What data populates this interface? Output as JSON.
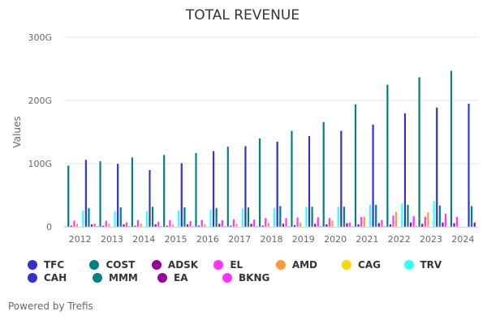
{
  "chart_data": {
    "type": "bar",
    "title": "TOTAL REVENUE",
    "xlabel": "",
    "ylabel": "Values",
    "ylim": [
      0,
      300
    ],
    "y_unit": "G",
    "yticks": [
      "0",
      "100G",
      "200G",
      "300G"
    ],
    "ytick_values": [
      0,
      100,
      200,
      300
    ],
    "grid": true,
    "legend_position": "bottom-left",
    "categories": [
      "2012",
      "2013",
      "2014",
      "2015",
      "2016",
      "2017",
      "2018",
      "2019",
      "2020",
      "2021",
      "2022",
      "2023",
      "2024"
    ],
    "series": [
      {
        "name": "TFC",
        "color": "#3333cc",
        "values": [
          1,
          1,
          1,
          1,
          1,
          1,
          1,
          1,
          1,
          1,
          1,
          1,
          null
        ]
      },
      {
        "name": "COST",
        "color": "#008080",
        "values": [
          97,
          104,
          110,
          114,
          117,
          127,
          140,
          152,
          166,
          194,
          225,
          237,
          247
        ]
      },
      {
        "name": "ADSK",
        "color": "#990099",
        "values": [
          2,
          2,
          2,
          2,
          2,
          2,
          2,
          3,
          4,
          4,
          4,
          5,
          6
        ]
      },
      {
        "name": "EL",
        "color": "#ff33ff",
        "values": [
          10,
          10,
          11,
          11,
          11,
          12,
          14,
          15,
          14,
          16,
          18,
          16,
          16
        ]
      },
      {
        "name": "AMD",
        "color": "#ff9933",
        "values": [
          5,
          5,
          5,
          4,
          4,
          5,
          6,
          7,
          10,
          16,
          24,
          23,
          null
        ]
      },
      {
        "name": "CAG",
        "color": "#ffd700",
        "values": [
          null,
          null,
          null,
          null,
          null,
          null,
          null,
          null,
          null,
          null,
          null,
          null,
          null
        ]
      },
      {
        "name": "TRV",
        "color": "#33ffff",
        "values": [
          26,
          25,
          25,
          26,
          27,
          29,
          30,
          32,
          32,
          35,
          37,
          41,
          null
        ]
      },
      {
        "name": "CAH",
        "color": "#3333cc",
        "values": [
          106,
          100,
          90,
          101,
          120,
          128,
          135,
          144,
          152,
          162,
          180,
          189,
          195
        ]
      },
      {
        "name": "MMM",
        "color": "#008080",
        "values": [
          30,
          31,
          32,
          31,
          30,
          31,
          33,
          32,
          32,
          35,
          35,
          34,
          33
        ]
      },
      {
        "name": "EA",
        "color": "#990099",
        "values": [
          4,
          4,
          4,
          4,
          5,
          5,
          5,
          5,
          6,
          6,
          7,
          7,
          7
        ]
      },
      {
        "name": "BKNG",
        "color": "#ff33ff",
        "values": [
          5,
          7,
          8,
          9,
          11,
          12,
          14,
          15,
          7,
          11,
          17,
          21,
          null
        ]
      }
    ]
  },
  "legend": {
    "rows": [
      [
        {
          "name": "TFC",
          "color": "#3333cc"
        },
        {
          "name": "COST",
          "color": "#008080"
        },
        {
          "name": "ADSK",
          "color": "#990099"
        },
        {
          "name": "EL",
          "color": "#ff33ff"
        },
        {
          "name": "AMD",
          "color": "#ff9933"
        },
        {
          "name": "CAG",
          "color": "#ffd700"
        },
        {
          "name": "TRV",
          "color": "#33ffff"
        }
      ],
      [
        {
          "name": "CAH",
          "color": "#3333cc"
        },
        {
          "name": "MMM",
          "color": "#008080"
        },
        {
          "name": "EA",
          "color": "#990099"
        },
        {
          "name": "BKNG",
          "color": "#ff33ff"
        }
      ]
    ]
  },
  "footer": {
    "credit": "Powered by Trefis"
  }
}
